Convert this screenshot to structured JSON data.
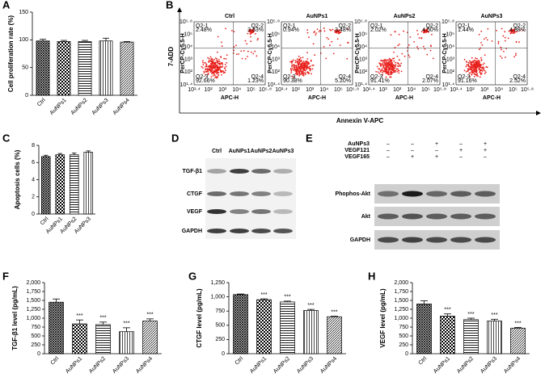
{
  "chart_data": [
    {
      "type": "bar",
      "panel": "A",
      "ylabel": "Cell proliferation rate (%)",
      "categories": [
        "Ctrl",
        "AuNPs1",
        "AuNPs2",
        "AuNPs3",
        "AuNPs4"
      ],
      "values": [
        98,
        97,
        97,
        98,
        96
      ],
      "errors": [
        3,
        2,
        2,
        5,
        1
      ],
      "significance": [
        null,
        null,
        null,
        null,
        null
      ],
      "ylim": [
        0,
        150
      ],
      "yticks": [
        0,
        50,
        100,
        150
      ]
    },
    {
      "type": "flow",
      "panel": "B",
      "ylabel": "7-ADD",
      "xlabel": "Annexin V-APC",
      "axis_x": "APC-H",
      "axis_y": "PerCP-Cy5.5-H",
      "xtick_labels": [
        "10¹·⁴",
        "10²",
        "10³",
        "10⁴",
        "10⁵",
        "10⁵·⁸"
      ],
      "ytick_labels": [
        "10¹·⁴",
        "10²",
        "10³",
        "10⁴",
        "10⁵",
        "10⁵·⁸"
      ],
      "panels": [
        {
          "title": "Ctrl",
          "quadrants": [
            "Q2-1",
            "Q2-2",
            "Q2-3",
            "Q2-4"
          ],
          "quadrant_labels": [
            "2.48%",
            "3.63%",
            "92.66%",
            "1.23%"
          ]
        },
        {
          "title": "AuNPs1",
          "quadrants": [
            "Q2-1",
            "Q2-2",
            "Q2-3",
            "Q2-4"
          ],
          "quadrant_labels": [
            "0.94%",
            "3.48%",
            "90.38%",
            "5.20%"
          ]
        },
        {
          "title": "AuNPs2",
          "quadrants": [
            "Q2-1",
            "Q2-2",
            "Q2-3",
            "Q2-4"
          ],
          "quadrant_labels": [
            "2.02%",
            "4.50%",
            "91.41%",
            "2.07%"
          ]
        },
        {
          "title": "AuNPs3",
          "quadrants": [
            "Q2-1",
            "Q2-2",
            "Q2-3",
            "Q2-4"
          ],
          "quadrant_labels": [
            "1.44%",
            "4.88%",
            "91.16%",
            "2.52%"
          ]
        }
      ]
    },
    {
      "type": "bar",
      "panel": "C",
      "ylabel": "Apoptosis cells (%)",
      "categories": [
        "Ctrl",
        "AuNPs1",
        "AuNPs2",
        "AuNPs3"
      ],
      "values": [
        6.7,
        6.9,
        6.9,
        7.2
      ],
      "errors": [
        0.15,
        0.15,
        0.2,
        0.15
      ],
      "significance": [
        null,
        null,
        null,
        null
      ],
      "ylim": [
        0,
        8
      ],
      "yticks": [
        0,
        2,
        4,
        6,
        8
      ]
    },
    {
      "type": "blot",
      "panel": "D",
      "columns": [
        "Ctrl",
        "AuNPs1",
        "AuNPs2",
        "AuNPs3"
      ],
      "rows": [
        "TGF-β1",
        "CTGF",
        "VEGF",
        "GAPDH"
      ]
    },
    {
      "type": "blot",
      "panel": "E",
      "treatments": [
        {
          "name": "AuNPs3",
          "signs": [
            "–",
            "–",
            "+",
            "–",
            "+"
          ]
        },
        {
          "name": "VEGF121",
          "signs": [
            "–",
            "–",
            "–",
            "+",
            "+"
          ]
        },
        {
          "name": "VEGF165",
          "signs": [
            "–",
            "+",
            "+",
            "–",
            "–"
          ]
        }
      ],
      "rows": [
        "Phophos-Akt",
        "Akt",
        "GAPDH"
      ]
    },
    {
      "type": "bar",
      "panel": "F",
      "ylabel": "TGF-β1 level (pg/mL)",
      "categories": [
        "Ctrl",
        "AuNPs1",
        "AuNPs2",
        "AuNPs3",
        "AuNPs4"
      ],
      "values": [
        1450,
        840,
        820,
        620,
        920
      ],
      "errors": [
        90,
        110,
        70,
        110,
        60
      ],
      "significance": [
        null,
        "***",
        "***",
        "***",
        "***"
      ],
      "ylim": [
        0,
        2000
      ],
      "yticks": [
        0,
        250,
        500,
        750,
        {
          "value": 1000,
          "label": "1,000"
        },
        {
          "value": 1250,
          "label": "1,250"
        },
        {
          "value": 1500,
          "label": "1,500"
        },
        {
          "value": 1750,
          "label": "1,750"
        },
        {
          "value": 2000,
          "label": "2,000"
        }
      ]
    },
    {
      "type": "bar",
      "panel": "G",
      "ylabel": "CTGF level (pg/mL)",
      "categories": [
        "Ctrl",
        "AuNPs1",
        "AuNPs2",
        "AuNPs3",
        "AuNPs4"
      ],
      "values": [
        1040,
        950,
        910,
        760,
        650
      ],
      "errors": [
        10,
        15,
        15,
        20,
        10
      ],
      "significance": [
        null,
        "***",
        "***",
        "***",
        "***"
      ],
      "ylim": [
        0,
        1250
      ],
      "yticks": [
        0,
        250,
        500,
        750,
        {
          "value": 1000,
          "label": "1,000"
        },
        {
          "value": 1250,
          "label": "1,250"
        }
      ]
    },
    {
      "type": "bar",
      "panel": "H",
      "ylabel": "VEGF level (pg/mL)",
      "categories": [
        "Ctrl",
        "AuNPs1",
        "AuNPs2",
        "AuNPs3",
        "AuNPs4"
      ],
      "values": [
        1400,
        1060,
        960,
        920,
        720
      ],
      "errors": [
        90,
        60,
        40,
        50,
        20
      ],
      "significance": [
        null,
        "***",
        "***",
        "***",
        "***"
      ],
      "ylim": [
        0,
        2000
      ],
      "yticks": [
        0,
        250,
        500,
        750,
        {
          "value": 1000,
          "label": "1,000"
        },
        {
          "value": 1250,
          "label": "1,250"
        },
        {
          "value": 1500,
          "label": "1,500"
        },
        {
          "value": 1750,
          "label": "1,750"
        },
        {
          "value": 2000,
          "label": "2,000"
        }
      ]
    }
  ]
}
